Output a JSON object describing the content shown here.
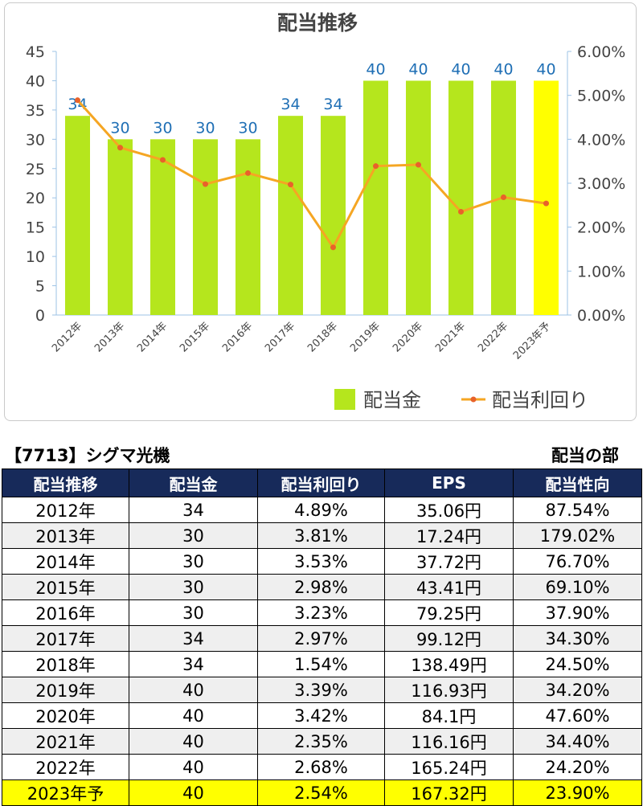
{
  "chart_data": {
    "type": "bar+line",
    "title": "配当推移",
    "categories": [
      "2012年",
      "2013年",
      "2014年",
      "2015年",
      "2016年",
      "2017年",
      "2018年",
      "2019年",
      "2020年",
      "2021年",
      "2022年",
      "2023年予"
    ],
    "series": [
      {
        "name": "配当金",
        "type": "bar",
        "axis": "left",
        "color": "#b5e61d",
        "highlight_color": "#ffff00",
        "highlight_index": 11,
        "values": [
          34,
          30,
          30,
          30,
          30,
          34,
          34,
          40,
          40,
          40,
          40,
          40
        ],
        "data_labels": [
          "34",
          "30",
          "30",
          "30",
          "30",
          "34",
          "34",
          "40",
          "40",
          "40",
          "40",
          "40"
        ]
      },
      {
        "name": "配当利回り",
        "type": "line",
        "axis": "right",
        "color": "#f5a623",
        "marker_color": "#e8622a",
        "values": [
          4.89,
          3.81,
          3.53,
          2.98,
          3.23,
          2.97,
          1.54,
          3.39,
          3.42,
          2.35,
          2.68,
          2.54
        ]
      }
    ],
    "y_left": {
      "min": 0,
      "max": 45,
      "ticks": [
        "0",
        "5",
        "10",
        "15",
        "20",
        "25",
        "30",
        "35",
        "40",
        "45"
      ]
    },
    "y_right": {
      "min": 0,
      "max": 6,
      "ticks": [
        "0.00%",
        "1.00%",
        "2.00%",
        "3.00%",
        "4.00%",
        "5.00%",
        "6.00%"
      ]
    },
    "legend_position": "bottom-right",
    "grid": false
  },
  "caption": {
    "company": "【7713】シグマ光機",
    "section": "配当の部"
  },
  "table": {
    "headers": [
      "配当推移",
      "配当金",
      "配当利回り",
      "EPS",
      "配当性向"
    ],
    "rows": [
      [
        "2012年",
        "34",
        "4.89%",
        "35.06円",
        "87.54%"
      ],
      [
        "2013年",
        "30",
        "3.81%",
        "17.24円",
        "179.02%"
      ],
      [
        "2014年",
        "30",
        "3.53%",
        "37.72円",
        "76.70%"
      ],
      [
        "2015年",
        "30",
        "2.98%",
        "43.41円",
        "69.10%"
      ],
      [
        "2016年",
        "30",
        "3.23%",
        "79.25円",
        "37.90%"
      ],
      [
        "2017年",
        "34",
        "2.97%",
        "99.12円",
        "34.30%"
      ],
      [
        "2018年",
        "34",
        "1.54%",
        "138.49円",
        "24.50%"
      ],
      [
        "2019年",
        "40",
        "3.39%",
        "116.93円",
        "34.20%"
      ],
      [
        "2020年",
        "40",
        "3.42%",
        "84.1円",
        "47.60%"
      ],
      [
        "2021年",
        "40",
        "2.35%",
        "116.16円",
        "34.40%"
      ],
      [
        "2022年",
        "40",
        "2.68%",
        "165.24円",
        "24.20%"
      ],
      [
        "2023年予",
        "40",
        "2.54%",
        "167.32円",
        "23.90%"
      ]
    ],
    "highlight_row_color": "#ffff00",
    "header_bg": "#172a5a"
  }
}
